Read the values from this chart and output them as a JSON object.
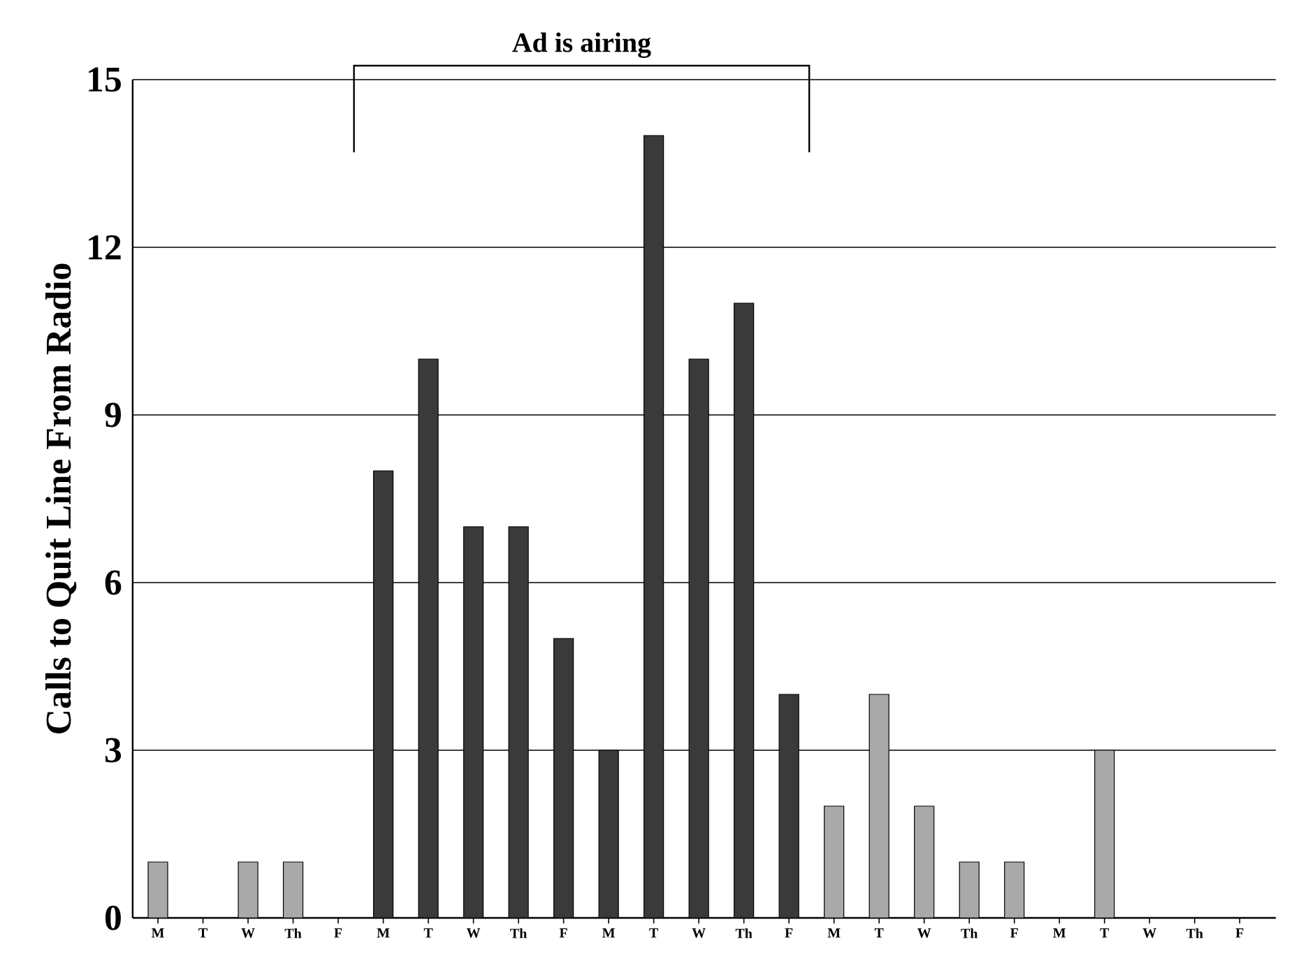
{
  "chart_data": {
    "type": "bar",
    "ylabel": "Calls to Quit Line From Radio",
    "annotations": [
      "Ad is airing"
    ],
    "categories": [
      "M",
      "T",
      "W",
      "Th",
      "F",
      "M",
      "T",
      "W",
      "Th",
      "F",
      "M",
      "T",
      "W",
      "Th",
      "F",
      "M",
      "T",
      "W",
      "Th",
      "F",
      "M",
      "T",
      "W",
      "Th",
      "F"
    ],
    "values": [
      1,
      0,
      1,
      1,
      0,
      8,
      10,
      7,
      7,
      5,
      3,
      14,
      10,
      11,
      4,
      2,
      4,
      2,
      1,
      1,
      0,
      3,
      0,
      0,
      0
    ],
    "colors": [
      "#a9a9a9",
      "#a9a9a9",
      "#a9a9a9",
      "#a9a9a9",
      "#a9a9a9",
      "#3a3a3a",
      "#3a3a3a",
      "#3a3a3a",
      "#3a3a3a",
      "#3a3a3a",
      "#3a3a3a",
      "#3a3a3a",
      "#3a3a3a",
      "#3a3a3a",
      "#3a3a3a",
      "#a9a9a9",
      "#a9a9a9",
      "#a9a9a9",
      "#a9a9a9",
      "#a9a9a9",
      "#a9a9a9",
      "#a9a9a9",
      "#a9a9a9",
      "#a9a9a9",
      "#a9a9a9"
    ],
    "ylim": [
      0,
      15
    ],
    "yticks": [
      0,
      3,
      6,
      9,
      12,
      15
    ],
    "grid": "y"
  }
}
